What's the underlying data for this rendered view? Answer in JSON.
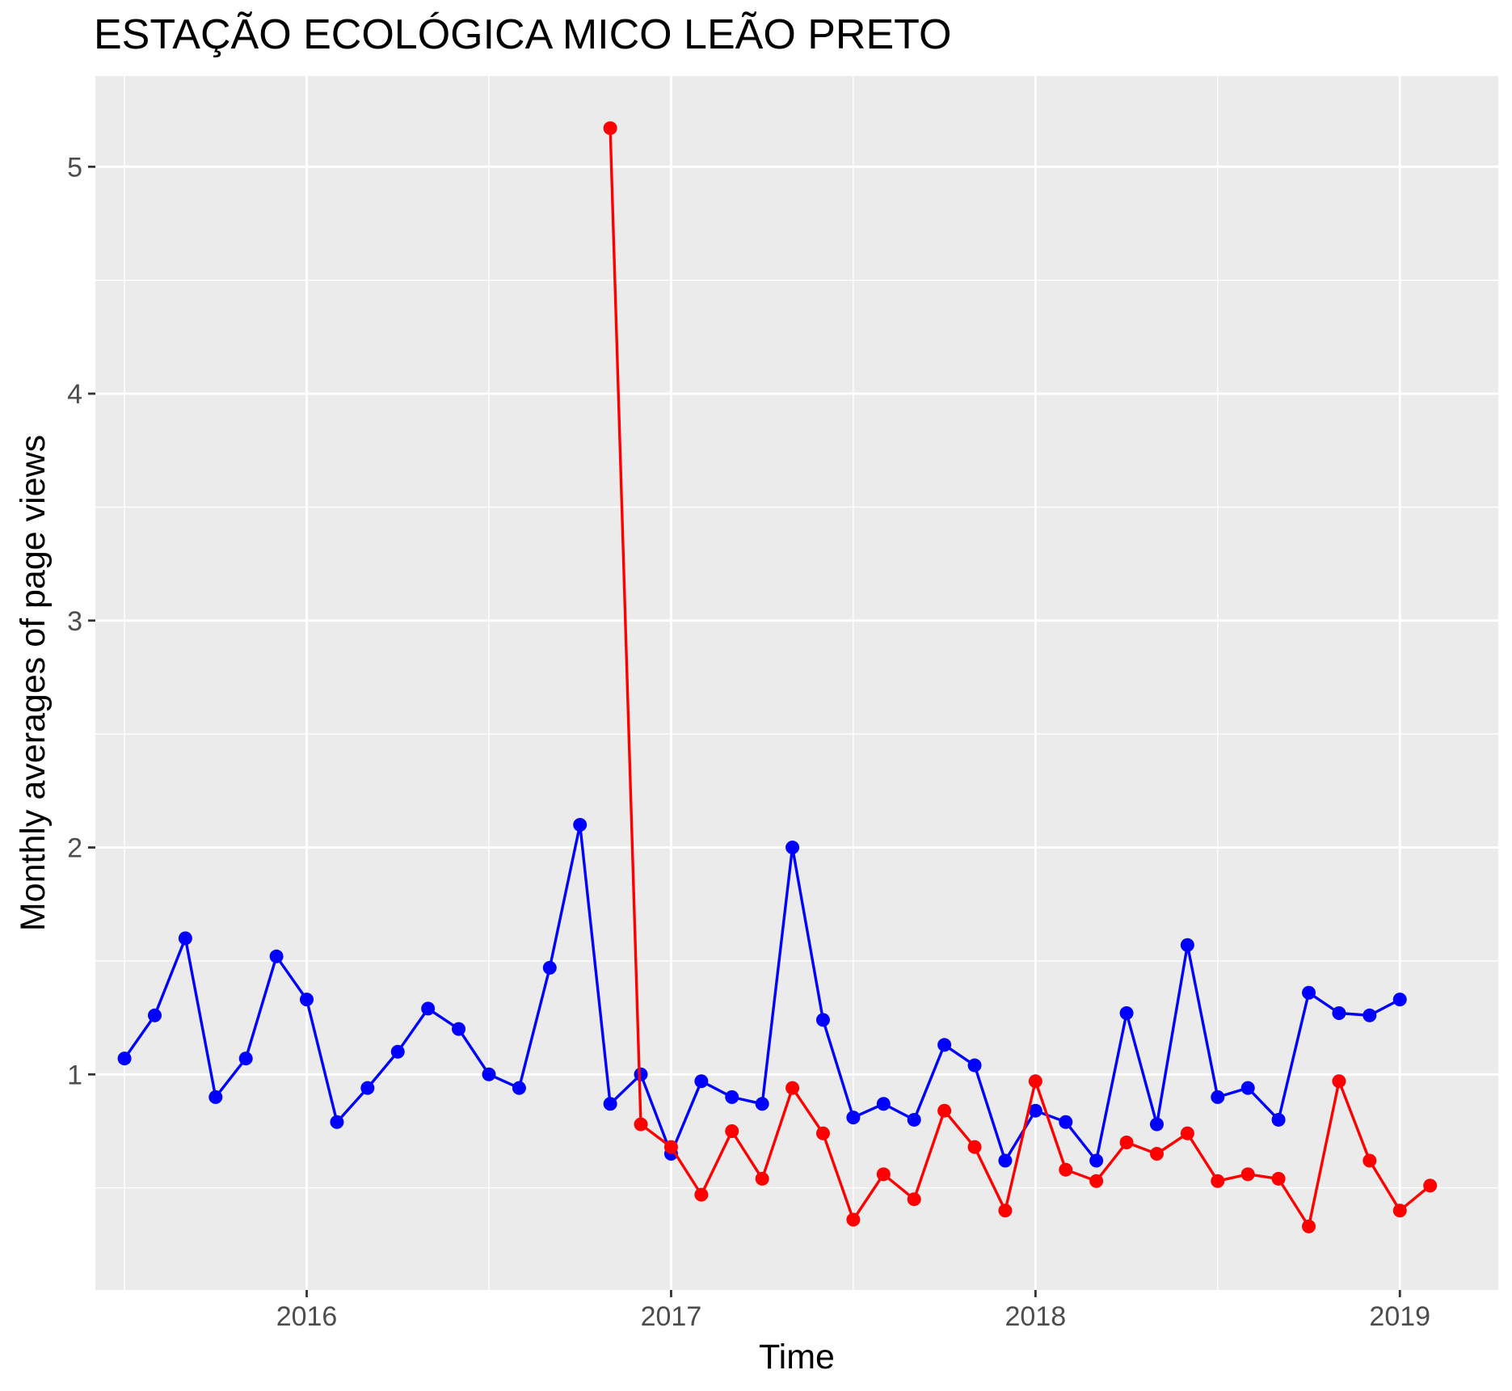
{
  "chart_data": {
    "type": "line",
    "title": "ESTAÇÃO ECOLÓGICA MICO LEÃO PRETO",
    "xlabel": "Time",
    "ylabel": "Monthly averages of page views",
    "x_tick_labels": [
      "2016",
      "2017",
      "2018",
      "2019"
    ],
    "y_tick_labels": [
      "1",
      "2",
      "3",
      "4",
      "5"
    ],
    "x_ticks": [
      2016,
      2017,
      2018,
      2019
    ],
    "y_ticks": [
      1,
      2,
      3,
      4,
      5
    ],
    "xlim": [
      2015.42,
      2019.27
    ],
    "ylim": [
      0.05,
      5.4
    ],
    "grid": true,
    "background": "#ebebeb",
    "series": [
      {
        "color": "#0000ff",
        "x": [
          2015.5,
          2015.583,
          2015.667,
          2015.75,
          2015.833,
          2015.917,
          2016.0,
          2016.083,
          2016.167,
          2016.25,
          2016.333,
          2016.417,
          2016.5,
          2016.583,
          2016.667,
          2016.75,
          2016.833,
          2016.917,
          2017.0,
          2017.083,
          2017.167,
          2017.25,
          2017.333,
          2017.417,
          2017.5,
          2017.583,
          2017.667,
          2017.75,
          2017.833,
          2017.917,
          2018.0,
          2018.083,
          2018.167,
          2018.25,
          2018.333,
          2018.417,
          2018.5,
          2018.583,
          2018.667,
          2018.75,
          2018.833,
          2018.917,
          2019.0
        ],
        "y": [
          1.07,
          1.26,
          1.6,
          0.9,
          1.07,
          1.52,
          1.33,
          0.79,
          0.94,
          1.1,
          1.29,
          1.2,
          1.0,
          0.94,
          1.47,
          2.1,
          0.87,
          1.0,
          0.65,
          0.97,
          0.9,
          0.87,
          2.0,
          1.24,
          0.81,
          0.87,
          0.8,
          1.13,
          1.04,
          0.62,
          0.84,
          0.79,
          0.62,
          1.27,
          0.78,
          1.57,
          0.9,
          0.94,
          0.8,
          1.36,
          1.27,
          1.26,
          1.33
        ]
      },
      {
        "color": "#ff0000",
        "x": [
          2016.833,
          2016.917,
          2017.0,
          2017.083,
          2017.167,
          2017.25,
          2017.333,
          2017.417,
          2017.5,
          2017.583,
          2017.667,
          2017.75,
          2017.833,
          2017.917,
          2018.0,
          2018.083,
          2018.167,
          2018.25,
          2018.333,
          2018.417,
          2018.5,
          2018.583,
          2018.667,
          2018.75,
          2018.833,
          2018.917,
          2019.0,
          2019.083
        ],
        "y": [
          5.17,
          0.78,
          0.68,
          0.47,
          0.75,
          0.54,
          0.94,
          0.74,
          0.36,
          0.56,
          0.45,
          0.84,
          0.68,
          0.4,
          0.97,
          0.58,
          0.53,
          0.7,
          0.65,
          0.74,
          0.53,
          0.56,
          0.54,
          0.33,
          0.97,
          0.62,
          0.4,
          0.51
        ]
      }
    ]
  }
}
